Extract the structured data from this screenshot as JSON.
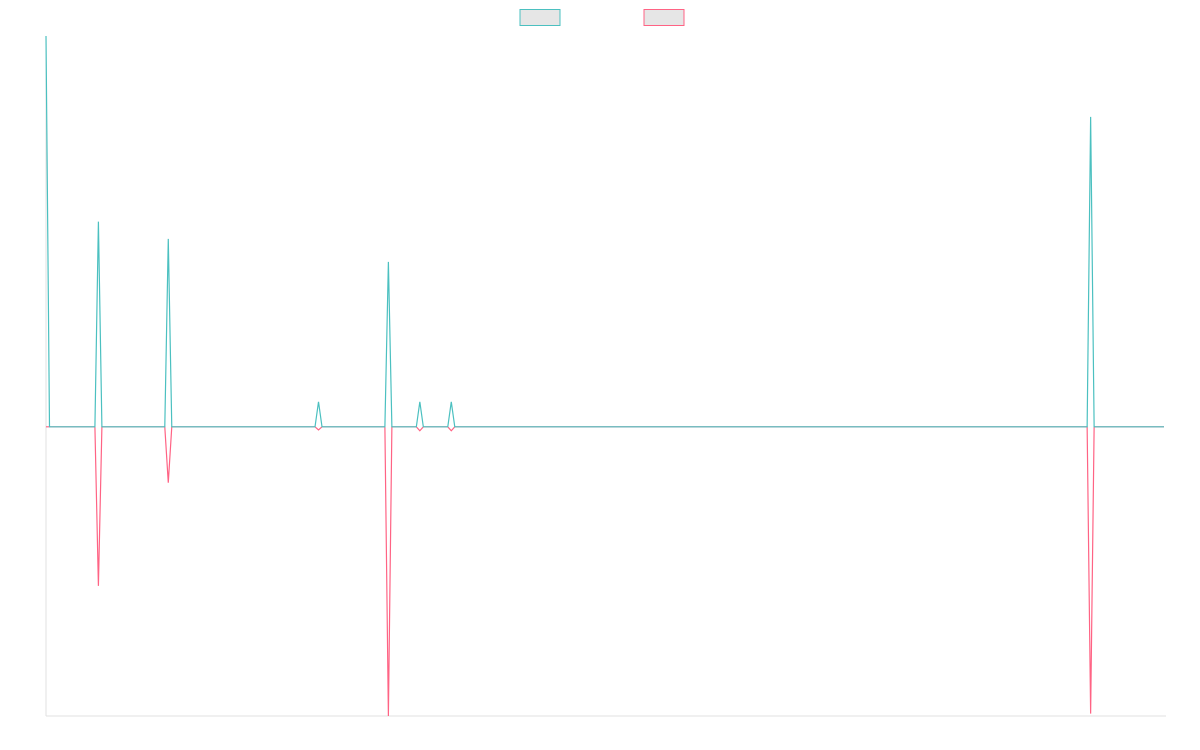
{
  "chart_data": {
    "type": "line",
    "x": [
      0,
      1,
      14,
      15,
      16,
      34,
      35,
      36,
      77,
      78,
      79,
      97,
      98,
      99,
      106,
      107,
      108,
      115,
      116,
      117,
      298,
      299,
      300,
      320
    ],
    "series": [
      {
        "color": "#4bc0c0",
        "values": [
          100,
          0,
          0,
          52.5,
          0,
          0,
          48.1,
          0,
          0,
          6.4,
          0,
          0,
          42.2,
          0,
          0,
          6.4,
          0,
          0,
          6.4,
          0,
          0,
          79.3,
          0,
          0
        ]
      },
      {
        "color": "#ff6384",
        "values": [
          0,
          0,
          0,
          -40.7,
          0,
          0,
          -14.3,
          0,
          0,
          -0.8,
          0,
          0,
          -74,
          0,
          0,
          -1,
          0,
          0,
          -1,
          0,
          0,
          -73.4,
          0,
          0
        ]
      }
    ],
    "xlim": [
      0,
      320
    ],
    "ylim": [
      -74,
      100
    ],
    "grid": false,
    "legend": "top"
  }
}
